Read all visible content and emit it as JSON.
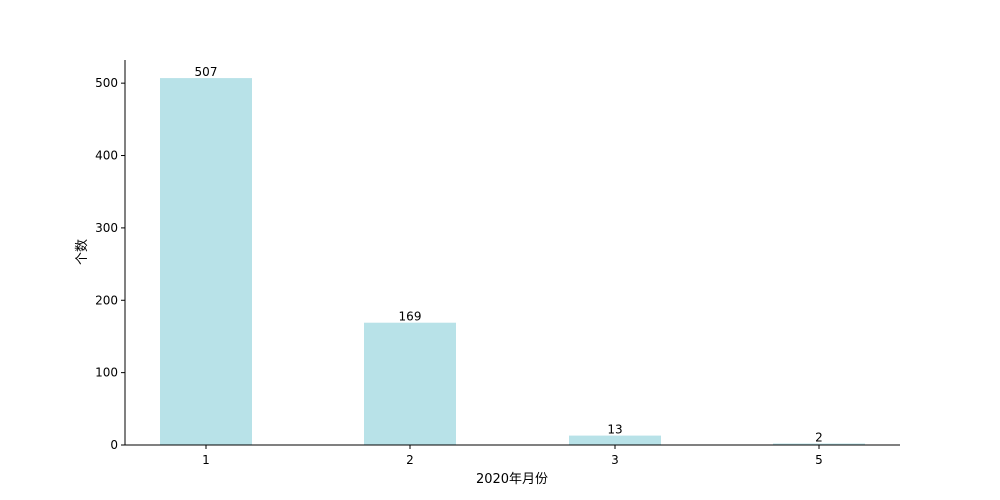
{
  "chart_data": {
    "type": "bar",
    "title": "",
    "xlabel": "2020年月份",
    "ylabel": "个数",
    "categories": [
      "1",
      "2",
      "3",
      "5"
    ],
    "values": [
      507,
      169,
      13,
      2
    ],
    "ylim": [
      0,
      532
    ],
    "yticks": [
      0,
      100,
      200,
      300,
      400,
      500
    ],
    "ytick_labels": [
      "0",
      "100",
      "200",
      "300",
      "400",
      "500"
    ],
    "grid": false,
    "legend": "none",
    "show_value_labels": true
  },
  "colors": {
    "bar": "#b8e2e8",
    "axis": "#000000",
    "text": "#000000"
  }
}
